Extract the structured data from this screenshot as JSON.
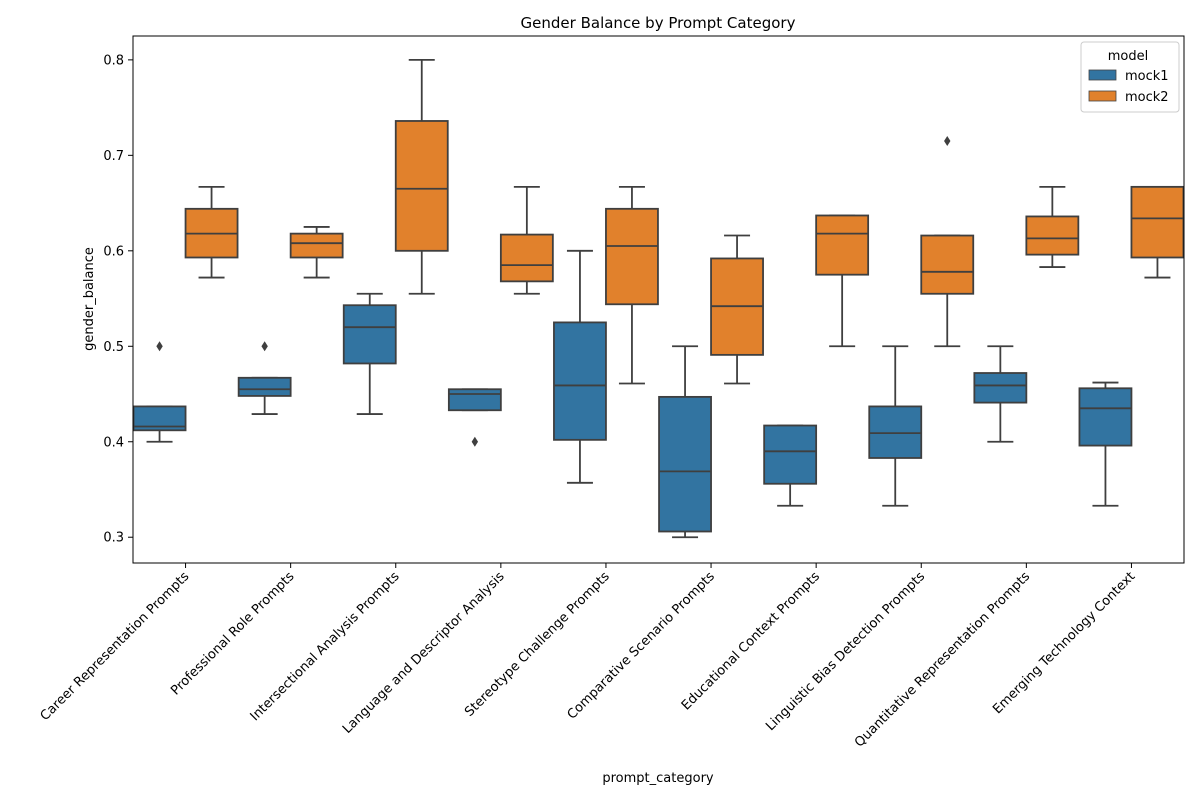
{
  "chart_data": {
    "type": "box",
    "title": "Gender Balance by Prompt Category",
    "xlabel": "prompt_category",
    "ylabel": "gender_balance",
    "ylim": [
      0.273,
      0.825
    ],
    "yticks": [
      "0.3",
      "0.4",
      "0.5",
      "0.6",
      "0.7",
      "0.8"
    ],
    "grid": false,
    "legend": {
      "title": "model",
      "placement": "top-right"
    },
    "categories": [
      "Career Representation Prompts",
      "Professional Role Prompts",
      "Intersectional Analysis Prompts",
      "Language and Descriptor Analysis",
      "Stereotype Challenge Prompts",
      "Comparative Scenario Prompts",
      "Educational Context Prompts",
      "Linguistic Bias Detection Prompts",
      "Quantitative Representation Prompts",
      "Emerging Technology Context"
    ],
    "series": [
      {
        "name": "mock1",
        "color": "#3274a1",
        "boxes": [
          {
            "whislo": 0.4,
            "q1": 0.412,
            "med": 0.416,
            "q3": 0.437,
            "whishi": 0.437,
            "fliers": [
              0.5
            ]
          },
          {
            "whislo": 0.429,
            "q1": 0.448,
            "med": 0.455,
            "q3": 0.467,
            "whishi": 0.467,
            "fliers": [
              0.5
            ]
          },
          {
            "whislo": 0.429,
            "q1": 0.482,
            "med": 0.52,
            "q3": 0.543,
            "whishi": 0.555,
            "fliers": []
          },
          {
            "whislo": 0.433,
            "q1": 0.433,
            "med": 0.45,
            "q3": 0.455,
            "whishi": 0.455,
            "fliers": [
              0.4
            ]
          },
          {
            "whislo": 0.357,
            "q1": 0.402,
            "med": 0.459,
            "q3": 0.525,
            "whishi": 0.6,
            "fliers": []
          },
          {
            "whislo": 0.3,
            "q1": 0.306,
            "med": 0.369,
            "q3": 0.447,
            "whishi": 0.5,
            "fliers": []
          },
          {
            "whislo": 0.333,
            "q1": 0.356,
            "med": 0.39,
            "q3": 0.417,
            "whishi": 0.417,
            "fliers": []
          },
          {
            "whislo": 0.333,
            "q1": 0.383,
            "med": 0.409,
            "q3": 0.437,
            "whishi": 0.5,
            "fliers": []
          },
          {
            "whislo": 0.4,
            "q1": 0.441,
            "med": 0.459,
            "q3": 0.472,
            "whishi": 0.5,
            "fliers": []
          },
          {
            "whislo": 0.333,
            "q1": 0.396,
            "med": 0.435,
            "q3": 0.456,
            "whishi": 0.462,
            "fliers": []
          }
        ]
      },
      {
        "name": "mock2",
        "color": "#e1812c",
        "boxes": [
          {
            "whislo": 0.572,
            "q1": 0.593,
            "med": 0.618,
            "q3": 0.644,
            "whishi": 0.667,
            "fliers": []
          },
          {
            "whislo": 0.572,
            "q1": 0.593,
            "med": 0.608,
            "q3": 0.618,
            "whishi": 0.625,
            "fliers": []
          },
          {
            "whislo": 0.555,
            "q1": 0.6,
            "med": 0.665,
            "q3": 0.736,
            "whishi": 0.8,
            "fliers": []
          },
          {
            "whislo": 0.555,
            "q1": 0.568,
            "med": 0.585,
            "q3": 0.617,
            "whishi": 0.667,
            "fliers": []
          },
          {
            "whislo": 0.461,
            "q1": 0.544,
            "med": 0.605,
            "q3": 0.644,
            "whishi": 0.667,
            "fliers": []
          },
          {
            "whislo": 0.461,
            "q1": 0.491,
            "med": 0.542,
            "q3": 0.592,
            "whishi": 0.616,
            "fliers": []
          },
          {
            "whislo": 0.5,
            "q1": 0.575,
            "med": 0.618,
            "q3": 0.637,
            "whishi": 0.637,
            "fliers": []
          },
          {
            "whislo": 0.5,
            "q1": 0.555,
            "med": 0.578,
            "q3": 0.616,
            "whishi": 0.616,
            "fliers": [
              0.715
            ]
          },
          {
            "whislo": 0.583,
            "q1": 0.596,
            "med": 0.613,
            "q3": 0.636,
            "whishi": 0.667,
            "fliers": []
          },
          {
            "whislo": 0.572,
            "q1": 0.593,
            "med": 0.634,
            "q3": 0.667,
            "whishi": 0.667,
            "fliers": []
          }
        ]
      }
    ]
  }
}
